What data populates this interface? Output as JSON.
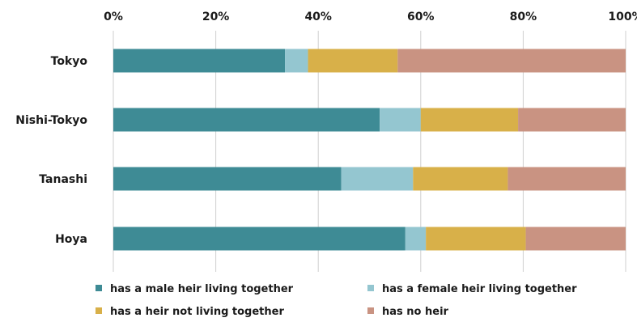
{
  "chart_data": {
    "type": "bar",
    "orientation": "horizontal",
    "stacked": true,
    "categories": [
      "Tokyo",
      "Nishi-Tokyo",
      "Tanashi",
      "Hoya"
    ],
    "series": [
      {
        "name": "has a male heir living together",
        "color": "#3e8b95",
        "values": [
          33.5,
          52,
          44.5,
          57
        ]
      },
      {
        "name": "has a female heir living together",
        "color": "#94c6d0",
        "values": [
          4.5,
          8,
          14,
          4
        ]
      },
      {
        "name": "has a heir not living together",
        "color": "#d8b049",
        "values": [
          17.5,
          19,
          18.5,
          19.5
        ]
      },
      {
        "name": "has no heir",
        "color": "#c99382",
        "values": [
          44.5,
          21,
          23,
          19.5
        ]
      }
    ],
    "xlim": [
      0,
      100
    ],
    "xticks": [
      "0%",
      "20%",
      "40%",
      "60%",
      "80%",
      "100%"
    ],
    "grid": true,
    "legend_position": "bottom"
  }
}
